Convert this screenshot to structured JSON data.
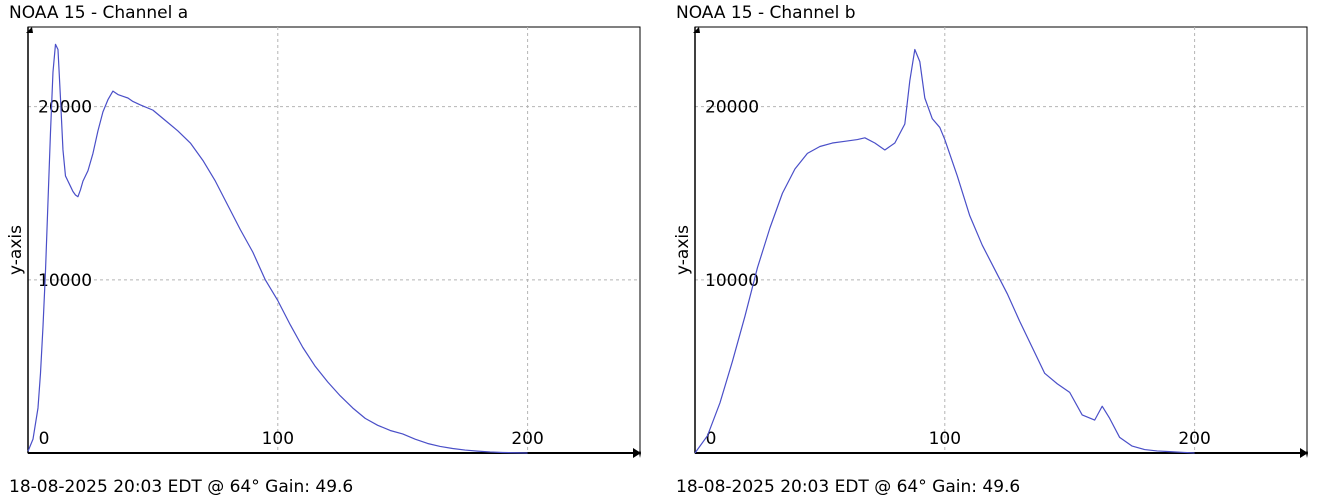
{
  "colors": {
    "line": "#4a4fc8",
    "grid": "#b5b5b5",
    "axis": "#000000",
    "frame": "#000000"
  },
  "chart_data": [
    {
      "type": "line",
      "title": "NOAA 15 - Channel a",
      "footer": "18-08-2025 20:03 EDT @ 64° Gain: 49.6",
      "ylabel": "y-axis",
      "xlabel": "",
      "xlim": [
        0,
        245
      ],
      "ylim": [
        0,
        24600
      ],
      "xticks": [
        0,
        100,
        200
      ],
      "xtick_labels": [
        "0",
        "100",
        "200"
      ],
      "yticks": [
        10000,
        20000
      ],
      "ytick_labels": [
        "10000",
        "20000"
      ],
      "grid": true,
      "series": [
        {
          "x": [
            0,
            2,
            4,
            5,
            6,
            7,
            8,
            9,
            10,
            11,
            12,
            13,
            14,
            15,
            16,
            17,
            18,
            19,
            20,
            21,
            22,
            24,
            26,
            28,
            30,
            32,
            34,
            36,
            38,
            40,
            42,
            45,
            50,
            55,
            60,
            65,
            70,
            75,
            80,
            85,
            90,
            95,
            100,
            105,
            110,
            115,
            120,
            125,
            130,
            135,
            140,
            145,
            150,
            155,
            160,
            165,
            170,
            175,
            180,
            185,
            190,
            195,
            200
          ],
          "y": [
            100,
            800,
            2600,
            4600,
            7300,
            10500,
            14500,
            18500,
            22000,
            23600,
            23300,
            20500,
            17500,
            16000,
            15700,
            15400,
            15100,
            14900,
            14800,
            15200,
            15700,
            16300,
            17300,
            18600,
            19700,
            20400,
            20900,
            20700,
            20600,
            20500,
            20300,
            20100,
            19800,
            19200,
            18600,
            17900,
            16900,
            15700,
            14300,
            12900,
            11600,
            10000,
            8800,
            7400,
            6100,
            5000,
            4100,
            3300,
            2600,
            2000,
            1600,
            1300,
            1100,
            800,
            550,
            380,
            260,
            170,
            110,
            60,
            30,
            15,
            0
          ]
        }
      ]
    },
    {
      "type": "line",
      "title": "NOAA 15 - Channel b",
      "footer": "18-08-2025 20:03 EDT @ 64° Gain: 49.6",
      "ylabel": "y-axis",
      "xlabel": "",
      "xlim": [
        0,
        245
      ],
      "ylim": [
        0,
        24600
      ],
      "xticks": [
        0,
        100,
        200
      ],
      "xtick_labels": [
        "0",
        "100",
        "200"
      ],
      "yticks": [
        10000,
        20000
      ],
      "ytick_labels": [
        "10000",
        "20000"
      ],
      "grid": true,
      "series": [
        {
          "x": [
            0,
            5,
            10,
            15,
            20,
            25,
            30,
            35,
            40,
            45,
            50,
            55,
            60,
            65,
            68,
            72,
            76,
            80,
            84,
            86,
            88,
            90,
            92,
            95,
            98,
            100,
            105,
            110,
            115,
            120,
            125,
            130,
            135,
            140,
            145,
            150,
            155,
            160,
            163,
            166,
            170,
            175,
            180,
            185,
            190,
            195,
            200
          ],
          "y": [
            0,
            1000,
            2900,
            5300,
            7900,
            10700,
            13000,
            15000,
            16400,
            17300,
            17700,
            17900,
            18000,
            18100,
            18200,
            17900,
            17500,
            17900,
            19000,
            21500,
            23300,
            22600,
            20500,
            19300,
            18800,
            18100,
            16000,
            13700,
            12000,
            10600,
            9200,
            7600,
            6100,
            4600,
            4000,
            3500,
            2200,
            1900,
            2700,
            2000,
            900,
            400,
            200,
            120,
            80,
            40,
            0
          ]
        }
      ]
    }
  ]
}
